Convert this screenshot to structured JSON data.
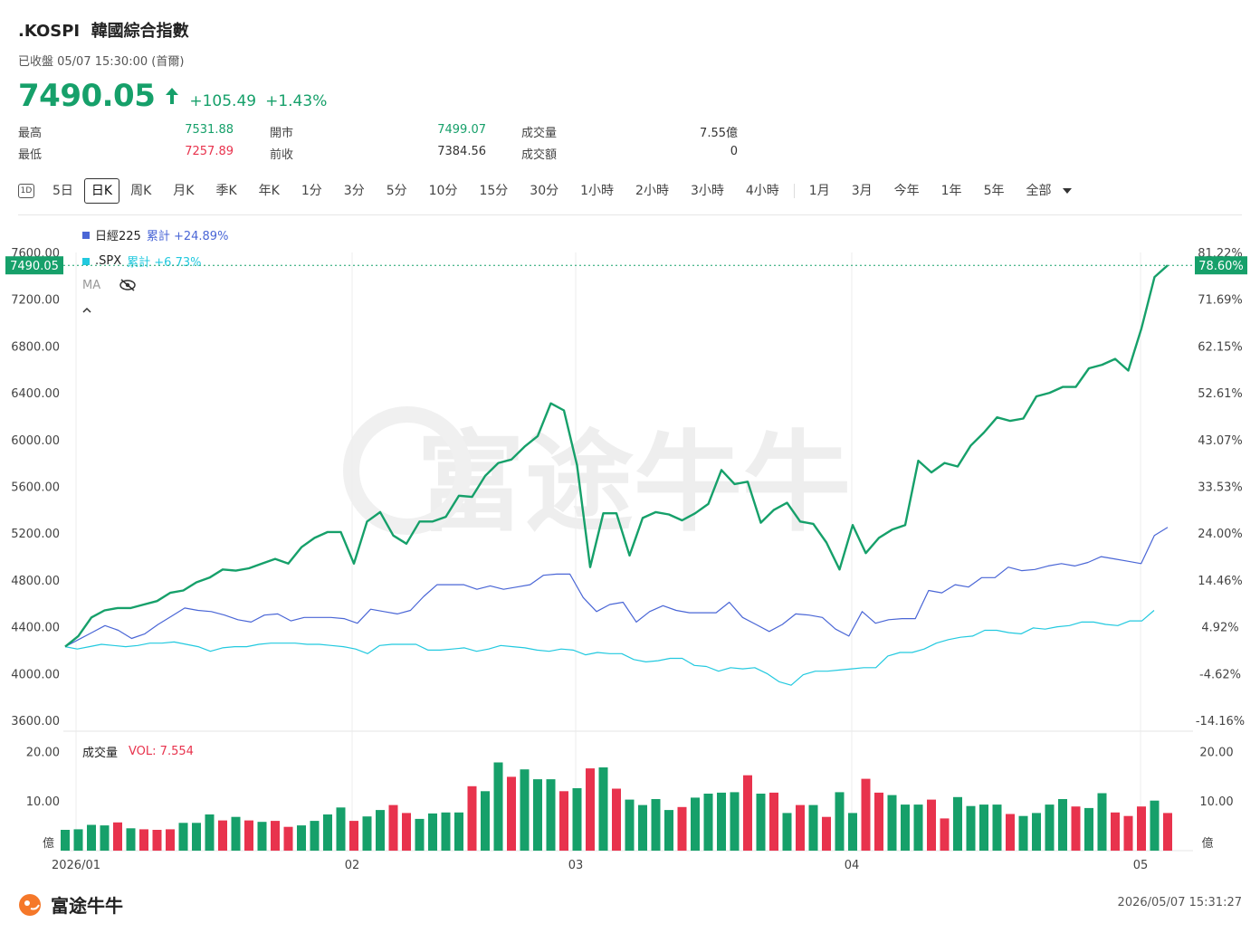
{
  "header": {
    "symbol": ".KOSPI",
    "name": "韓國綜合指數",
    "status": "已收盤 05/07 15:30:00 (首爾)",
    "price": "7490.05",
    "change": "+105.49",
    "change_pct": "+1.43%"
  },
  "stats": [
    {
      "label": "最高",
      "value": "7531.88",
      "tone": "up"
    },
    {
      "label": "開市",
      "value": "7499.07",
      "tone": "up"
    },
    {
      "label": "成交量",
      "value": "7.55億",
      "tone": "neutral"
    },
    {
      "label": "最低",
      "value": "7257.89",
      "tone": "down"
    },
    {
      "label": "前收",
      "value": "7384.56",
      "tone": "neutral"
    },
    {
      "label": "成交額",
      "value": "0",
      "tone": "neutral"
    }
  ],
  "periods": {
    "icon": "1D",
    "group1": [
      "5日",
      "日K",
      "周K",
      "月K",
      "季K",
      "年K",
      "1分",
      "3分",
      "5分",
      "10分",
      "15分",
      "30分",
      "1小時",
      "2小時",
      "3小時",
      "4小時"
    ],
    "group2": [
      "1月",
      "3月",
      "今年",
      "1年",
      "5年",
      "全部"
    ],
    "active": "日K"
  },
  "legend": {
    "s1_name": "日經225",
    "s1_cum": "累計 +24.89%",
    "s2_name": ".SPX",
    "s2_cum": "累計 +6.73%",
    "ma_label": "MA",
    "vol_title": "成交量",
    "vol_value": "VOL: 7.554"
  },
  "price_tag_left": "7490.05",
  "price_tag_right": "78.60%",
  "footer": {
    "brand": "富途牛牛",
    "timestamp": "2026/05/07 15:31:27"
  },
  "watermark": "富途牛牛",
  "colors": {
    "up": "#16a06a",
    "down": "#e8334d",
    "nikkei": "#4a66d6",
    "spx": "#22c9df"
  },
  "chart_data": [
    {
      "type": "line",
      "title": "",
      "x_tick_labels": [
        "2026/01",
        "02",
        "03",
        "04",
        "05"
      ],
      "y_left_ticks": [
        "7600.00",
        "7200.00",
        "6800.00",
        "6400.00",
        "6000.00",
        "5600.00",
        "5200.00",
        "4800.00",
        "4400.00",
        "4000.00",
        "3600.00"
      ],
      "y_right_ticks": [
        "81.22%",
        "71.69%",
        "62.15%",
        "52.61%",
        "43.07%",
        "33.53%",
        "24.00%",
        "14.46%",
        "4.92%",
        "-4.62%",
        "-14.16%"
      ],
      "ylim": [
        3600,
        7600
      ],
      "grid": true,
      "legend_position": "top-left",
      "series": [
        {
          "name": ".KOSPI",
          "values": [
            4230,
            4320,
            4480,
            4540,
            4560,
            4560,
            4590,
            4620,
            4690,
            4710,
            4780,
            4820,
            4890,
            4880,
            4900,
            4940,
            4980,
            4940,
            5080,
            5160,
            5210,
            5210,
            4940,
            5300,
            5380,
            5180,
            5110,
            5300,
            5300,
            5340,
            5520,
            5510,
            5690,
            5800,
            5830,
            5940,
            6030,
            6310,
            6250,
            5780,
            4910,
            5370,
            5370,
            5010,
            5330,
            5380,
            5360,
            5310,
            5370,
            5450,
            5740,
            5620,
            5640,
            5290,
            5400,
            5460,
            5300,
            5280,
            5120,
            4890,
            5270,
            5030,
            5160,
            5230,
            5270,
            5820,
            5720,
            5800,
            5770,
            5950,
            6060,
            6190,
            6160,
            6180,
            6370,
            6400,
            6450,
            6450,
            6610,
            6640,
            6690,
            6590,
            6950,
            7390,
            7490
          ]
        },
        {
          "name": "日經225",
          "values": [
            4230,
            4290,
            4350,
            4410,
            4370,
            4300,
            4340,
            4420,
            4490,
            4560,
            4540,
            4530,
            4500,
            4460,
            4440,
            4500,
            4510,
            4450,
            4480,
            4480,
            4480,
            4470,
            4430,
            4550,
            4530,
            4510,
            4540,
            4660,
            4760,
            4760,
            4760,
            4720,
            4750,
            4720,
            4740,
            4760,
            4840,
            4850,
            4850,
            4650,
            4530,
            4590,
            4610,
            4440,
            4530,
            4580,
            4540,
            4520,
            4520,
            4520,
            4610,
            4480,
            4420,
            4360,
            4420,
            4510,
            4500,
            4480,
            4380,
            4320,
            4530,
            4430,
            4460,
            4470,
            4470,
            4710,
            4690,
            4760,
            4740,
            4820,
            4820,
            4910,
            4880,
            4890,
            4920,
            4940,
            4920,
            4950,
            5000,
            4980,
            4960,
            4940,
            5180,
            5250
          ]
        },
        {
          "name": ".SPX",
          "values": [
            4230,
            4210,
            4230,
            4250,
            4240,
            4230,
            4240,
            4260,
            4260,
            4270,
            4250,
            4230,
            4190,
            4220,
            4230,
            4230,
            4250,
            4260,
            4260,
            4260,
            4250,
            4250,
            4240,
            4230,
            4210,
            4170,
            4240,
            4250,
            4250,
            4250,
            4200,
            4200,
            4210,
            4220,
            4190,
            4210,
            4240,
            4230,
            4220,
            4200,
            4190,
            4210,
            4200,
            4160,
            4180,
            4170,
            4170,
            4120,
            4100,
            4110,
            4130,
            4130,
            4070,
            4060,
            4020,
            4050,
            4040,
            4050,
            4000,
            3930,
            3900,
            3990,
            4020,
            4020,
            4030,
            4040,
            4050,
            4050,
            4150,
            4180,
            4180,
            4210,
            4260,
            4290,
            4310,
            4320,
            4370,
            4370,
            4350,
            4340,
            4390,
            4380,
            4400,
            4410,
            4440,
            4440,
            4420,
            4410,
            4450,
            4450,
            4540
          ]
        }
      ]
    },
    {
      "type": "bar",
      "title": "成交量",
      "y_ticks": [
        "20.00",
        "10.00"
      ],
      "y_unit": "億",
      "ylim": [
        0,
        23
      ],
      "series": [
        {
          "name": "VOL",
          "values": [
            4.2,
            4.3,
            5.2,
            5.1,
            5.7,
            4.5,
            4.3,
            4.2,
            4.3,
            5.6,
            5.6,
            7.3,
            6.1,
            6.8,
            6.1,
            5.8,
            6.0,
            4.8,
            5.1,
            6.0,
            7.3,
            8.7,
            6.0,
            6.9,
            8.2,
            9.2,
            7.6,
            6.4,
            7.5,
            7.7,
            7.7,
            13.0,
            12.0,
            17.8,
            14.9,
            16.4,
            14.4,
            14.4,
            12.0,
            12.6,
            16.6,
            16.8,
            12.5,
            10.3,
            9.2,
            10.4,
            8.2,
            8.8,
            10.7,
            11.5,
            11.7,
            11.8,
            15.2,
            11.5,
            11.7,
            7.6,
            9.2,
            9.2,
            6.8,
            11.8,
            7.6,
            14.5,
            11.7,
            11.2,
            9.3,
            9.3,
            10.3,
            6.5,
            10.8,
            9.0,
            9.3,
            9.3,
            7.4,
            7.0,
            7.6,
            9.3,
            10.4,
            8.9,
            8.6,
            11.6,
            7.7,
            7.0,
            8.9,
            10.1,
            7.6
          ]
        },
        {
          "name": "direction",
          "values": [
            1,
            1,
            1,
            1,
            0,
            1,
            0,
            0,
            0,
            1,
            1,
            1,
            0,
            1,
            0,
            1,
            0,
            0,
            1,
            1,
            1,
            1,
            0,
            1,
            1,
            0,
            0,
            1,
            1,
            1,
            1,
            0,
            1,
            1,
            0,
            1,
            1,
            1,
            0,
            1,
            0,
            1,
            0,
            1,
            1,
            1,
            1,
            0,
            1,
            1,
            1,
            1,
            0,
            1,
            0,
            1,
            0,
            1,
            0,
            1,
            1,
            0,
            0,
            1,
            1,
            1,
            0,
            0,
            1,
            1,
            1,
            1,
            0,
            1,
            1,
            1,
            1,
            0,
            1,
            1,
            0,
            0,
            0,
            1,
            0
          ]
        }
      ]
    }
  ]
}
